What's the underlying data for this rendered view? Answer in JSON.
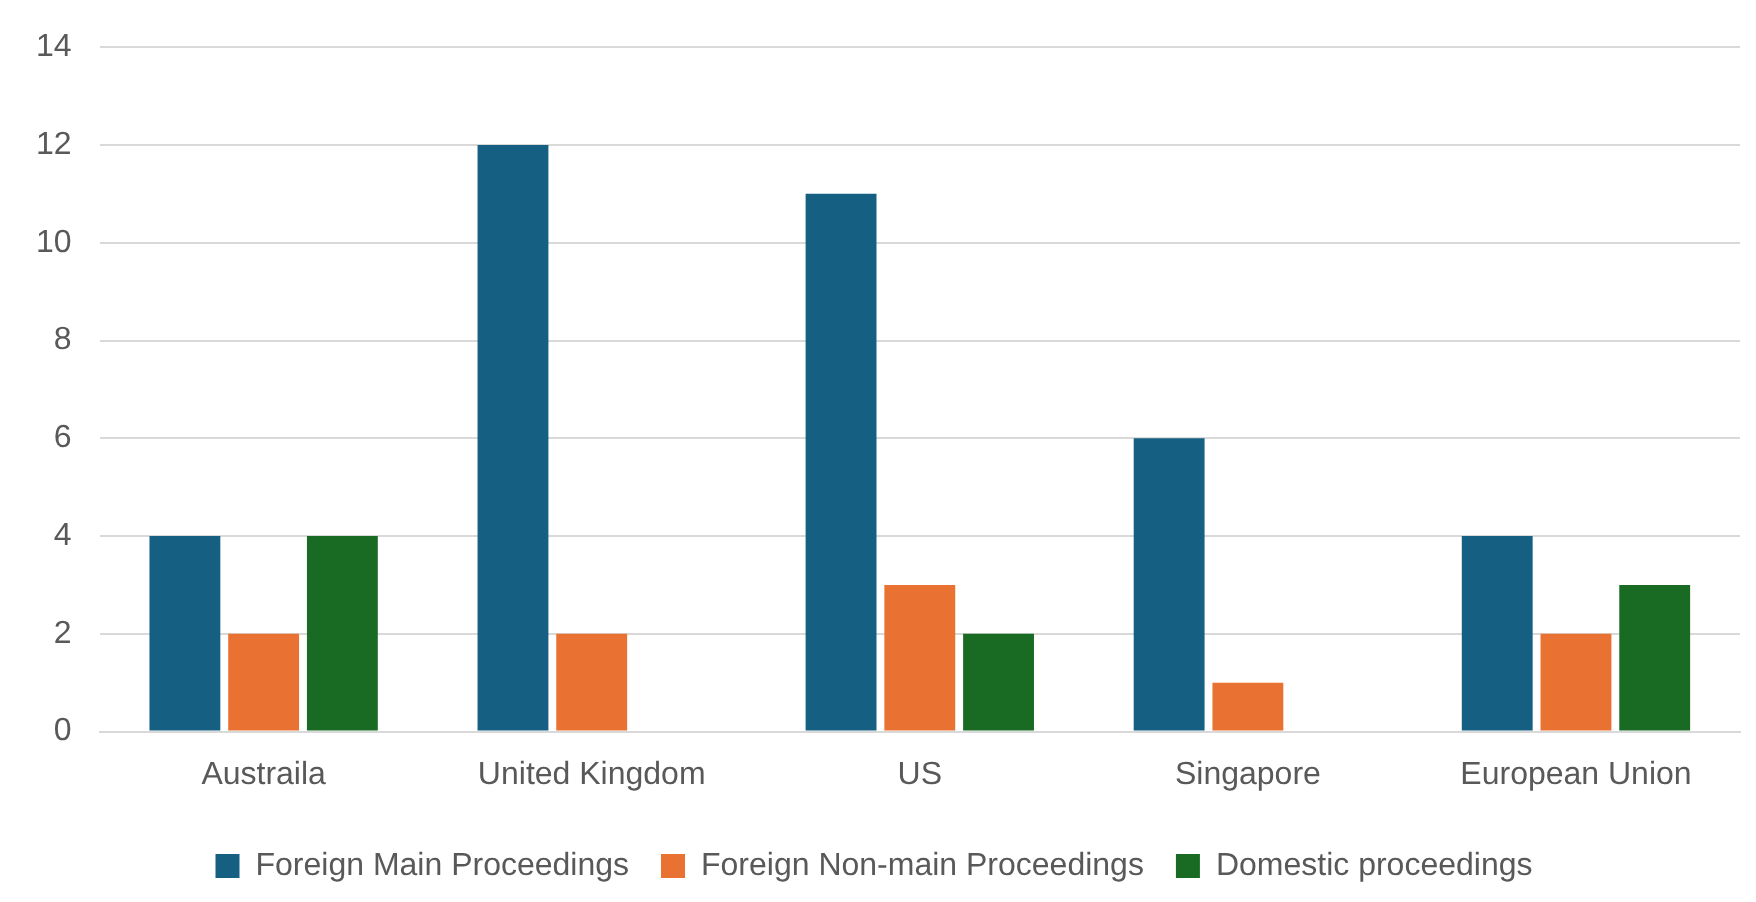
{
  "chart_data": {
    "type": "bar",
    "categories": [
      "Austraila",
      "United Kingdom",
      "US",
      "Singapore",
      "European Union"
    ],
    "series": [
      {
        "name": "Foreign Main Proceedings",
        "color": "#155f82",
        "values": [
          4,
          12,
          11,
          6,
          4
        ]
      },
      {
        "name": "Foreign Non-main Proceedings",
        "color": "#e97132",
        "values": [
          2,
          2,
          3,
          1,
          2
        ]
      },
      {
        "name": "Domestic proceedings",
        "color": "#196b24",
        "values": [
          4,
          null,
          2,
          null,
          3
        ]
      }
    ],
    "ylim": [
      0,
      14
    ],
    "yticks": [
      0,
      2,
      4,
      6,
      8,
      10,
      12,
      14
    ],
    "grid": "y",
    "legend": "bottom"
  }
}
